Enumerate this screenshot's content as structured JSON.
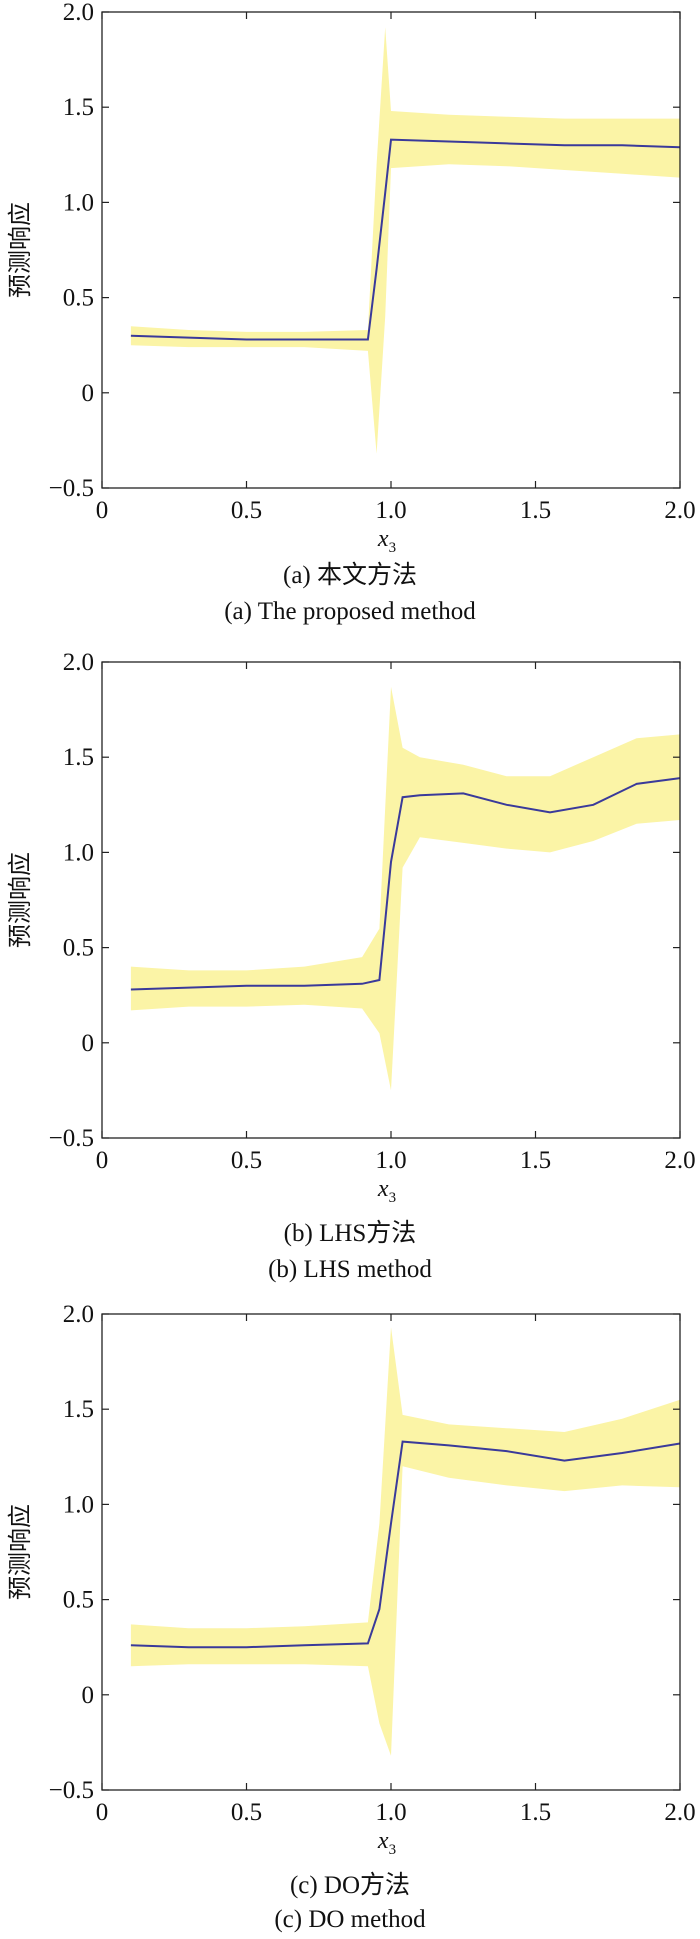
{
  "colors": {
    "band": "#fbf4a6",
    "line": "#3a3a9a",
    "axis": "#222222"
  },
  "chart_data": [
    {
      "type": "line",
      "caption_zh": "(a) 本文方法",
      "caption_en": "(a) The proposed method",
      "xlabel": "x",
      "xlabel_sub": "3",
      "ylabel": "预测响应",
      "xlim": [
        0,
        2
      ],
      "ylim": [
        -0.5,
        2
      ],
      "xticks": [
        "0",
        "0.5",
        "1.0",
        "1.5",
        "2.0"
      ],
      "yticks": [
        "−0.5",
        "0",
        "0.5",
        "1.0",
        "1.5",
        "2.0"
      ],
      "x": [
        0.1,
        0.3,
        0.5,
        0.7,
        0.92,
        0.95,
        0.98,
        1.0,
        1.2,
        1.4,
        1.6,
        1.8,
        2.0
      ],
      "mean": [
        0.3,
        0.29,
        0.28,
        0.28,
        0.28,
        0.65,
        1.05,
        1.33,
        1.32,
        1.31,
        1.3,
        1.3,
        1.29
      ],
      "lower": [
        0.25,
        0.24,
        0.24,
        0.24,
        0.22,
        -0.32,
        0.4,
        1.18,
        1.2,
        1.19,
        1.17,
        1.15,
        1.13
      ],
      "upper": [
        0.35,
        0.33,
        0.32,
        0.32,
        0.33,
        1.2,
        1.92,
        1.48,
        1.46,
        1.45,
        1.44,
        1.44,
        1.44
      ]
    },
    {
      "type": "line",
      "caption_zh": "(b) LHS方法",
      "caption_en": "(b) LHS method",
      "xlabel": "x",
      "xlabel_sub": "3",
      "ylabel": "预测响应",
      "xlim": [
        0,
        2
      ],
      "ylim": [
        -0.5,
        2
      ],
      "xticks": [
        "0",
        "0.5",
        "1.0",
        "1.5",
        "2.0"
      ],
      "yticks": [
        "−0.5",
        "0",
        "0.5",
        "1.0",
        "1.5",
        "2.0"
      ],
      "x": [
        0.1,
        0.3,
        0.5,
        0.7,
        0.9,
        0.96,
        1.0,
        1.04,
        1.1,
        1.25,
        1.4,
        1.55,
        1.7,
        1.85,
        2.0
      ],
      "mean": [
        0.28,
        0.29,
        0.3,
        0.3,
        0.31,
        0.33,
        0.95,
        1.29,
        1.3,
        1.31,
        1.25,
        1.21,
        1.25,
        1.36,
        1.39
      ],
      "lower": [
        0.17,
        0.19,
        0.19,
        0.2,
        0.18,
        0.05,
        -0.25,
        0.92,
        1.08,
        1.05,
        1.02,
        1.0,
        1.06,
        1.15,
        1.17
      ],
      "upper": [
        0.4,
        0.38,
        0.38,
        0.4,
        0.45,
        0.6,
        1.87,
        1.55,
        1.5,
        1.46,
        1.4,
        1.4,
        1.5,
        1.6,
        1.62
      ]
    },
    {
      "type": "line",
      "caption_zh": "(c) DO方法",
      "caption_en": "(c) DO method",
      "xlabel": "x",
      "xlabel_sub": "3",
      "ylabel": "预测响应",
      "xlim": [
        0,
        2
      ],
      "ylim": [
        -0.5,
        2
      ],
      "xticks": [
        "0",
        "0.5",
        "1.0",
        "1.5",
        "2.0"
      ],
      "yticks": [
        "−0.5",
        "0",
        "0.5",
        "1.0",
        "1.5",
        "2.0"
      ],
      "x": [
        0.1,
        0.3,
        0.5,
        0.7,
        0.92,
        0.96,
        1.0,
        1.04,
        1.2,
        1.4,
        1.6,
        1.8,
        2.0
      ],
      "mean": [
        0.26,
        0.25,
        0.25,
        0.26,
        0.27,
        0.45,
        0.9,
        1.33,
        1.31,
        1.28,
        1.23,
        1.27,
        1.32
      ],
      "lower": [
        0.15,
        0.16,
        0.16,
        0.16,
        0.15,
        -0.15,
        -0.32,
        1.2,
        1.14,
        1.1,
        1.07,
        1.1,
        1.09
      ],
      "upper": [
        0.37,
        0.35,
        0.35,
        0.36,
        0.38,
        0.9,
        1.93,
        1.47,
        1.42,
        1.4,
        1.38,
        1.45,
        1.55
      ]
    }
  ]
}
